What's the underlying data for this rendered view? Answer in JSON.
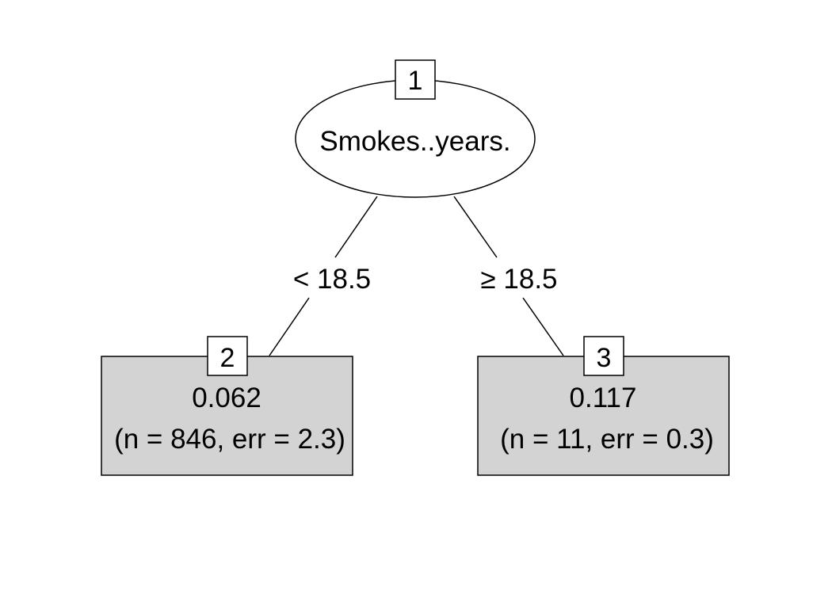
{
  "tree": {
    "root": {
      "id": "1",
      "variable": "Smokes..years."
    },
    "edges": {
      "left_label": "< 18.5",
      "right_label": "≥ 18.5"
    },
    "leaves": [
      {
        "id": "2",
        "prediction": "0.062",
        "stats": "(n = 846, err = 2.3)",
        "n": 846,
        "err": 2.3
      },
      {
        "id": "3",
        "prediction": "0.117",
        "stats": "(n = 11, err = 0.3)",
        "n": 11,
        "err": 0.3
      }
    ],
    "colors": {
      "leaf_fill": "#d3d3d3",
      "node_fill": "#ffffff",
      "stroke": "#000000"
    }
  }
}
